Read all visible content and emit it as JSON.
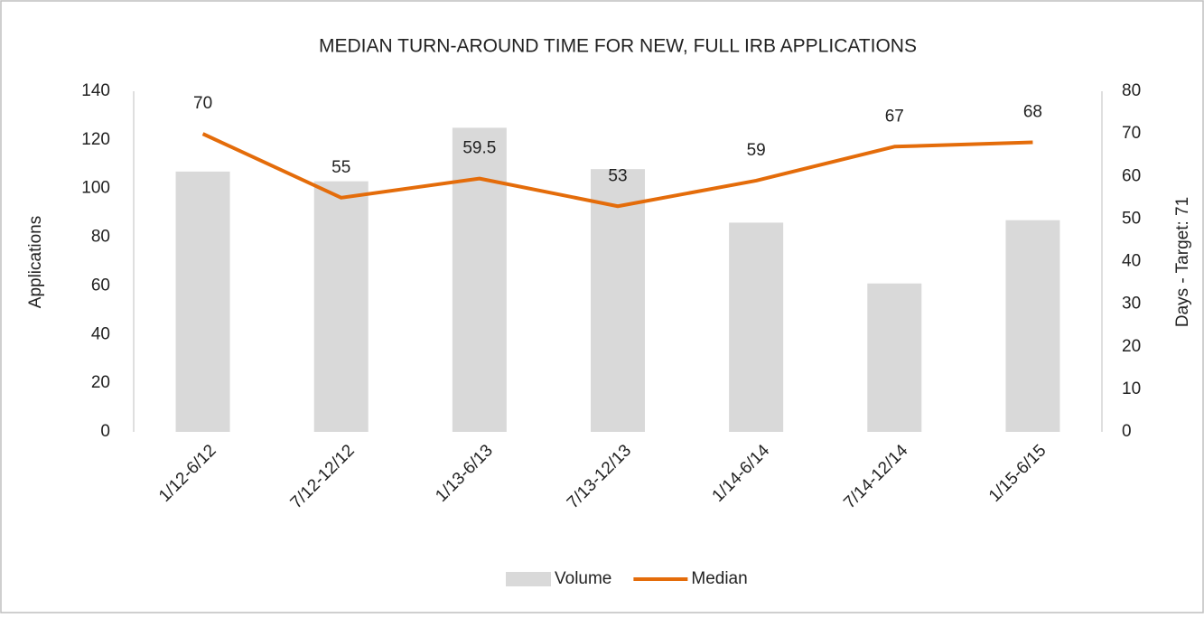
{
  "chart_data": {
    "type": "combo",
    "title": "MEDIAN TURN-AROUND TIME FOR NEW, FULL IRB APPLICATIONS",
    "y_label": "Applications",
    "y2_label": "Days - Target: 71",
    "categories": [
      "1/12-6/12",
      "7/12-12/12",
      "1/13-6/13",
      "7/13-12/13",
      "1/14-6/14",
      "7/14-12/14",
      "1/15-6/15"
    ],
    "series": [
      {
        "name": "Volume",
        "type": "bar",
        "color": "#d9d9d9",
        "values": [
          107,
          103,
          125,
          108,
          86,
          61,
          87
        ]
      },
      {
        "name": "Median",
        "type": "line",
        "axis": "y2",
        "color": "#e46c0a",
        "values": [
          70,
          55,
          59.5,
          53,
          59,
          67,
          68
        ],
        "data_labels": true
      }
    ],
    "ylim": [
      0,
      140
    ],
    "yticks": [
      0,
      20,
      40,
      60,
      80,
      100,
      120,
      140
    ],
    "y2lim": [
      0,
      80
    ],
    "y2ticks": [
      0,
      10,
      20,
      30,
      40,
      50,
      60,
      70,
      80
    ],
    "legend": "bottom"
  }
}
